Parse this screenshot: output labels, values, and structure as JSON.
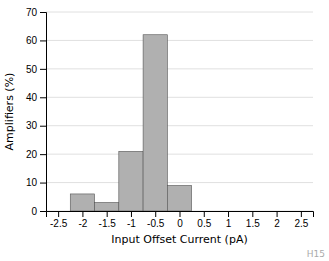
{
  "chart_data": {
    "type": "histogram",
    "bins": [
      -2.25,
      -1.75,
      -1.25,
      -0.75,
      -0.25,
      0.25,
      0.75
    ],
    "values": [
      6,
      3,
      21,
      62,
      9,
      0
    ],
    "color": "#b0b0b0",
    "xlim": [
      -2.75,
      2.75
    ],
    "xticks": [
      -2.5,
      -2,
      -1.5,
      -1,
      -0.5,
      0,
      0.5,
      1,
      1.5,
      2,
      2.5
    ],
    "ylim": [
      0,
      70
    ],
    "yticks": [
      0,
      10,
      20,
      30,
      40,
      50,
      60,
      70
    ],
    "xlabel": "Input Offset Current (pA)",
    "ylabel": "Amplifiers (%)",
    "annotations": [
      "H15"
    ],
    "grid": true
  }
}
